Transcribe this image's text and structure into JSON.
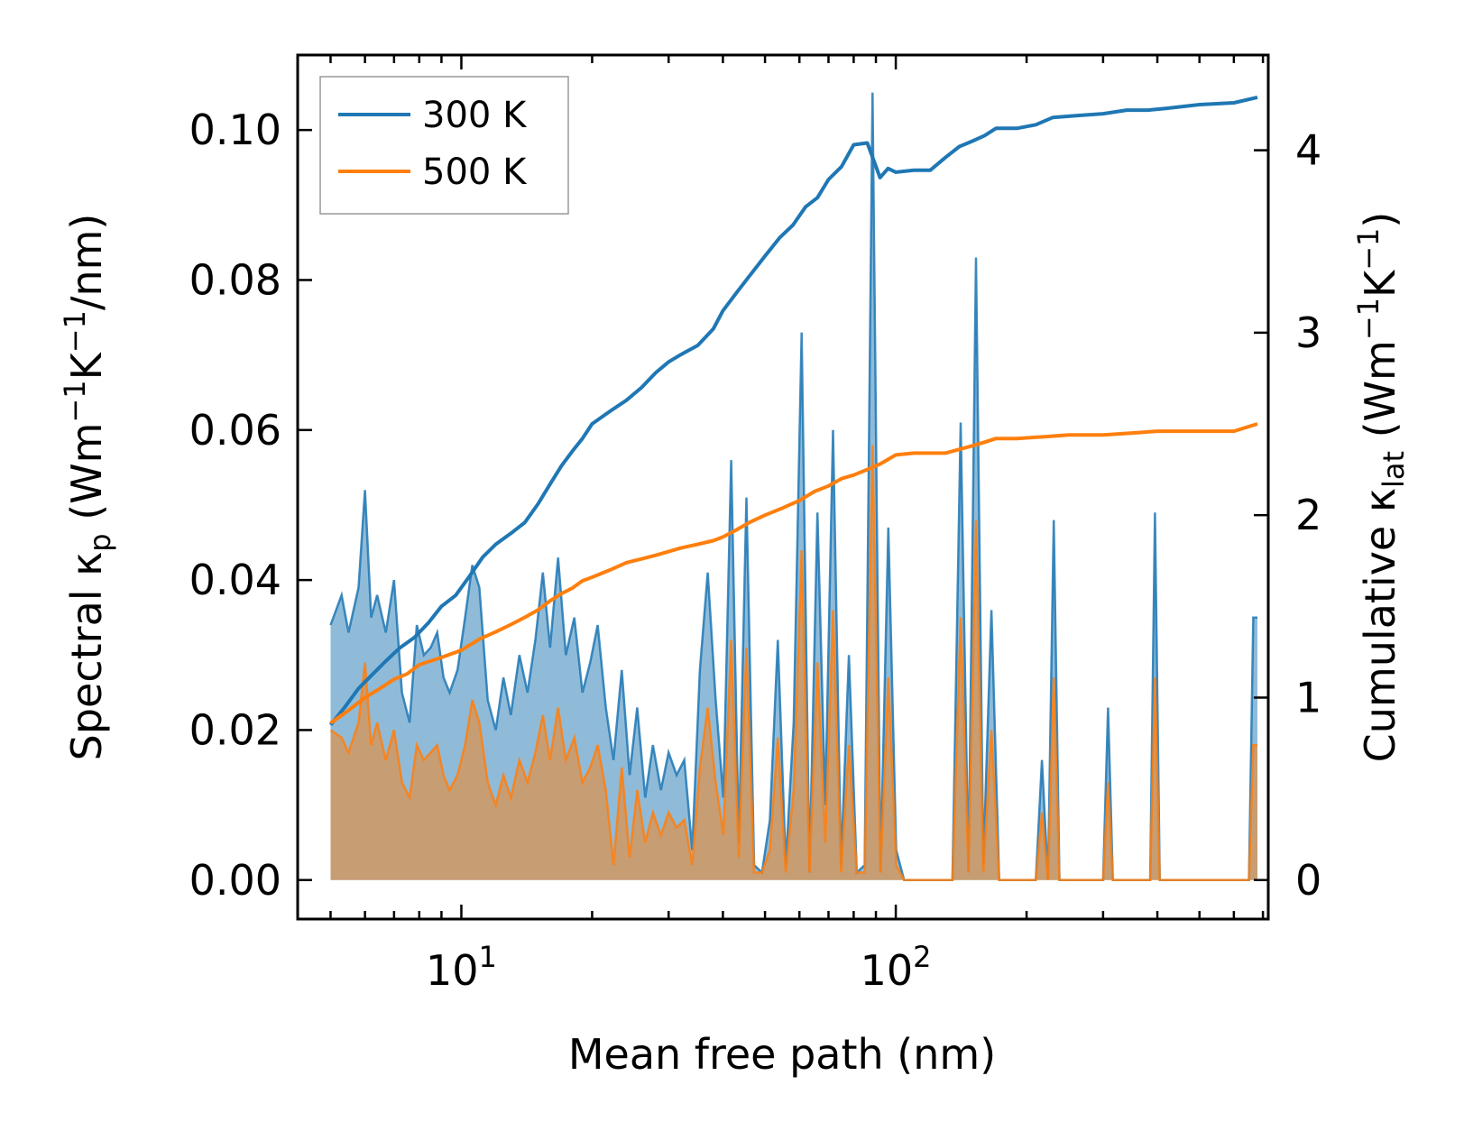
{
  "chart_data": {
    "type": "line",
    "xscale": "log",
    "xlabel": "Mean free path (nm)",
    "ylabel_left": {
      "prefix": "Spectral κ",
      "sub": "p",
      "unit_pre": " (Wm",
      "sup1": "−1",
      "unit_mid": "K",
      "sup2": "−1",
      "unit_post": "/nm)"
    },
    "ylabel_right": {
      "prefix": "Cumulative κ",
      "sub": "lat",
      "unit_pre": " (Wm",
      "sup1": "−1",
      "unit_mid": "K",
      "sup2": "−1",
      "unit_post": ")"
    },
    "xlim": [
      4.2,
      720
    ],
    "ylim_left": [
      -0.0052,
      0.11
    ],
    "ylim_right": [
      -0.2138,
      4.522
    ],
    "x_ticks": [
      {
        "value": 10,
        "base": "10",
        "exp": "1"
      },
      {
        "value": 100,
        "base": "10",
        "exp": "2"
      }
    ],
    "y_ticks_left": [
      {
        "value": 0.0,
        "label": "0.00"
      },
      {
        "value": 0.02,
        "label": "0.02"
      },
      {
        "value": 0.04,
        "label": "0.04"
      },
      {
        "value": 0.06,
        "label": "0.06"
      },
      {
        "value": 0.08,
        "label": "0.08"
      },
      {
        "value": 0.1,
        "label": "0.10"
      }
    ],
    "y_ticks_right": [
      {
        "value": 0,
        "label": "0"
      },
      {
        "value": 1,
        "label": "1"
      },
      {
        "value": 2,
        "label": "2"
      },
      {
        "value": 3,
        "label": "3"
      },
      {
        "value": 4,
        "label": "4"
      }
    ],
    "legend": {
      "position": "top-left",
      "entries": [
        {
          "label": "300 K",
          "color": "#1f77b4"
        },
        {
          "label": "500 K",
          "color": "#ff7f0e"
        }
      ]
    },
    "series": [
      {
        "name": "300 K",
        "color": "#1f77b4",
        "spectral": {
          "x": [
            5.0,
            5.3,
            5.5,
            5.8,
            6.0,
            6.2,
            6.4,
            6.7,
            7.0,
            7.3,
            7.6,
            7.9,
            8.2,
            8.5,
            8.8,
            9.1,
            9.4,
            9.8,
            10.2,
            10.6,
            11.0,
            11.5,
            12.0,
            12.5,
            13.0,
            13.6,
            14.2,
            14.8,
            15.4,
            16.0,
            16.7,
            17.4,
            18.2,
            19.0,
            19.8,
            20.6,
            21.5,
            22.4,
            23.4,
            24.4,
            25.4,
            26.5,
            27.6,
            28.8,
            30.0,
            31.3,
            32.6,
            34.0,
            35.4,
            36.9,
            38.5,
            40.1,
            41.8,
            43.5,
            45.3,
            47.2,
            49.2,
            51.3,
            53.5,
            55.8,
            58.2,
            60.7,
            63.3,
            66.0,
            68.8,
            71.7,
            74.8,
            78.0,
            81.3,
            84.8,
            88.4,
            92.2,
            96.1,
            100.2,
            104.5,
            109.0,
            135.0,
            141.0,
            147.0,
            153.0,
            159.0,
            166.0,
            173.0,
            180.0,
            210.0,
            217.0,
            224.0,
            231.0,
            238.0,
            245.0,
            300.0,
            308.0,
            316.0,
            385.0,
            395.0,
            405.0,
            650.0,
            665.0,
            680.0
          ],
          "values": [
            0.034,
            0.038,
            0.033,
            0.039,
            0.052,
            0.035,
            0.038,
            0.033,
            0.04,
            0.025,
            0.021,
            0.034,
            0.03,
            0.031,
            0.033,
            0.027,
            0.025,
            0.028,
            0.035,
            0.042,
            0.039,
            0.024,
            0.02,
            0.027,
            0.022,
            0.03,
            0.025,
            0.032,
            0.041,
            0.031,
            0.043,
            0.03,
            0.035,
            0.025,
            0.029,
            0.034,
            0.023,
            0.016,
            0.028,
            0.014,
            0.023,
            0.011,
            0.018,
            0.012,
            0.017,
            0.014,
            0.016,
            0.004,
            0.028,
            0.041,
            0.024,
            0.011,
            0.056,
            0.005,
            0.051,
            0.002,
            0.001,
            0.008,
            0.032,
            0.002,
            0.021,
            0.073,
            0.001,
            0.049,
            0.01,
            0.06,
            0.002,
            0.03,
            0.001,
            0.002,
            0.105,
            0.001,
            0.047,
            0.004,
            0.0,
            0.0,
            0.0,
            0.061,
            0.001,
            0.083,
            0.002,
            0.036,
            0.0,
            0.0,
            0.0,
            0.016,
            0.0,
            0.048,
            0.0,
            0.0,
            0.0,
            0.023,
            0.0,
            0.0,
            0.049,
            0.0,
            0.0,
            0.035,
            0.035
          ],
          "comment": "values in Wm-1K-1/nm"
        },
        "cumulative": {
          "x": [
            5.0,
            5.4,
            5.8,
            6.2,
            6.7,
            7.2,
            7.8,
            8.4,
            9.0,
            9.7,
            10.4,
            11.2,
            12.0,
            13.0,
            14.0,
            15.0,
            16.0,
            17.0,
            18.0,
            19.0,
            20.0,
            22.0,
            24.0,
            26.0,
            28.0,
            30.0,
            32.0,
            35.0,
            38.0,
            40.0,
            43.0,
            46.0,
            50.0,
            54.0,
            58.0,
            62.0,
            66.0,
            70.0,
            75.0,
            80.0,
            86.0,
            92.0,
            96.0,
            100.0,
            110.0,
            120.0,
            130.0,
            140.0,
            150.0,
            160.0,
            170.0,
            190.0,
            210.0,
            230.0,
            260.0,
            300.0,
            340.0,
            380.0,
            420.0,
            500.0,
            600.0,
            680.0
          ],
          "values": [
            0.85,
            0.95,
            1.05,
            1.12,
            1.2,
            1.27,
            1.33,
            1.41,
            1.5,
            1.56,
            1.66,
            1.77,
            1.84,
            1.9,
            1.96,
            2.06,
            2.17,
            2.27,
            2.35,
            2.42,
            2.5,
            2.57,
            2.63,
            2.7,
            2.78,
            2.84,
            2.88,
            2.93,
            3.02,
            3.12,
            3.22,
            3.31,
            3.42,
            3.52,
            3.59,
            3.69,
            3.74,
            3.84,
            3.91,
            4.03,
            4.04,
            3.85,
            3.9,
            3.88,
            3.89,
            3.89,
            3.96,
            4.02,
            4.05,
            4.08,
            4.12,
            4.12,
            4.14,
            4.18,
            4.19,
            4.2,
            4.22,
            4.22,
            4.23,
            4.25,
            4.26,
            4.29
          ],
          "comment": "values in Wm-1K-1"
        }
      },
      {
        "name": "500 K",
        "color": "#ff7f0e",
        "spectral": {
          "x": [
            5.0,
            5.3,
            5.5,
            5.8,
            6.0,
            6.2,
            6.4,
            6.7,
            7.0,
            7.3,
            7.6,
            7.9,
            8.2,
            8.5,
            8.8,
            9.1,
            9.4,
            9.8,
            10.2,
            10.6,
            11.0,
            11.5,
            12.0,
            12.5,
            13.0,
            13.6,
            14.2,
            14.8,
            15.4,
            16.0,
            16.7,
            17.4,
            18.2,
            19.0,
            19.8,
            20.6,
            21.5,
            22.4,
            23.4,
            24.4,
            25.4,
            26.5,
            27.6,
            28.8,
            30.0,
            31.3,
            32.6,
            34.0,
            35.4,
            36.9,
            38.5,
            40.1,
            41.8,
            43.5,
            45.3,
            47.2,
            49.2,
            51.3,
            53.5,
            55.8,
            58.2,
            60.7,
            63.3,
            66.0,
            68.8,
            71.7,
            74.8,
            78.0,
            81.3,
            84.8,
            88.4,
            92.2,
            96.1,
            100.2,
            104.5,
            109.0,
            135.0,
            141.0,
            147.0,
            153.0,
            159.0,
            166.0,
            173.0,
            180.0,
            210.0,
            217.0,
            224.0,
            231.0,
            238.0,
            245.0,
            300.0,
            308.0,
            316.0,
            385.0,
            395.0,
            405.0,
            650.0,
            665.0,
            680.0
          ],
          "values": [
            0.02,
            0.019,
            0.017,
            0.021,
            0.029,
            0.018,
            0.021,
            0.016,
            0.02,
            0.013,
            0.011,
            0.018,
            0.016,
            0.017,
            0.018,
            0.014,
            0.012,
            0.014,
            0.018,
            0.024,
            0.021,
            0.013,
            0.01,
            0.014,
            0.011,
            0.016,
            0.013,
            0.017,
            0.022,
            0.016,
            0.023,
            0.016,
            0.019,
            0.013,
            0.015,
            0.018,
            0.012,
            0.002,
            0.015,
            0.003,
            0.012,
            0.005,
            0.009,
            0.006,
            0.009,
            0.007,
            0.008,
            0.002,
            0.015,
            0.023,
            0.013,
            0.006,
            0.032,
            0.003,
            0.031,
            0.001,
            0.001,
            0.004,
            0.019,
            0.001,
            0.012,
            0.044,
            0.001,
            0.029,
            0.005,
            0.036,
            0.001,
            0.018,
            0.001,
            0.001,
            0.058,
            0.001,
            0.027,
            0.002,
            0.0,
            0.0,
            0.0,
            0.035,
            0.001,
            0.048,
            0.001,
            0.02,
            0.0,
            0.0,
            0.0,
            0.009,
            0.0,
            0.027,
            0.0,
            0.0,
            0.0,
            0.013,
            0.0,
            0.0,
            0.027,
            0.0,
            0.0,
            0.018,
            0.018
          ],
          "comment": "values in Wm-1K-1/nm"
        },
        "cumulative": {
          "x": [
            5.0,
            5.5,
            6.0,
            6.5,
            7.0,
            7.5,
            8.0,
            9.0,
            10.0,
            11.0,
            12.0,
            13.0,
            14.0,
            15.0,
            16.0,
            17.0,
            18.0,
            19.0,
            20.0,
            22.0,
            24.0,
            26.0,
            28.0,
            30.0,
            32.0,
            35.0,
            38.0,
            40.0,
            43.0,
            46.0,
            50.0,
            55.0,
            60.0,
            65.0,
            70.0,
            75.0,
            80.0,
            86.0,
            92.0,
            100.0,
            110.0,
            130.0,
            150.0,
            160.0,
            170.0,
            190.0,
            220.0,
            250.0,
            300.0,
            350.0,
            400.0,
            500.0,
            600.0,
            680.0
          ],
          "values": [
            0.86,
            0.93,
            1.0,
            1.05,
            1.1,
            1.13,
            1.18,
            1.22,
            1.26,
            1.32,
            1.36,
            1.4,
            1.44,
            1.48,
            1.53,
            1.57,
            1.6,
            1.64,
            1.66,
            1.7,
            1.74,
            1.76,
            1.78,
            1.8,
            1.82,
            1.84,
            1.86,
            1.88,
            1.92,
            1.96,
            2.0,
            2.04,
            2.08,
            2.13,
            2.16,
            2.2,
            2.22,
            2.25,
            2.28,
            2.33,
            2.34,
            2.34,
            2.38,
            2.4,
            2.42,
            2.42,
            2.43,
            2.44,
            2.44,
            2.45,
            2.46,
            2.46,
            2.46,
            2.5
          ],
          "comment": "values in Wm-1K-1"
        }
      }
    ]
  }
}
